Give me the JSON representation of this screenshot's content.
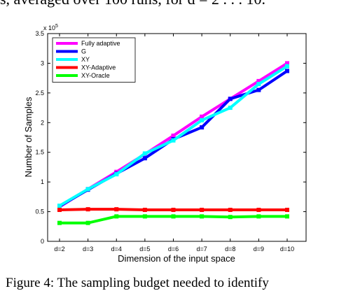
{
  "header_text": "s, averaged over 100 runs, for d = 2 . . . 10.",
  "caption": "Figure 4: The sampling budget needed to identify",
  "chart_data": {
    "type": "line",
    "xlabel": "Dimension of the input space",
    "ylabel": "Number of Samples",
    "y_multiplier": "x 10^5",
    "categories": [
      "d=2",
      "d=3",
      "d=4",
      "d=5",
      "d=6",
      "d=7",
      "d=8",
      "d=9",
      "d=10"
    ],
    "yticks": [
      "0",
      "0.5",
      "1",
      "1.5",
      "2",
      "2.5",
      "3",
      "3.5"
    ],
    "ylim": [
      0,
      3.5
    ],
    "legend_position": "top-left",
    "series": [
      {
        "name": "Fully adaptive",
        "color": "#ff00ff",
        "values": [
          0.58,
          0.88,
          1.17,
          1.47,
          1.78,
          2.1,
          2.4,
          2.7,
          3.0
        ]
      },
      {
        "name": "G",
        "color": "#0000ff",
        "values": [
          0.59,
          0.87,
          1.14,
          1.4,
          1.72,
          1.92,
          2.4,
          2.55,
          2.87
        ]
      },
      {
        "name": "XY",
        "color": "#00ffff",
        "values": [
          0.6,
          0.88,
          1.13,
          1.48,
          1.7,
          2.04,
          2.25,
          2.65,
          2.95
        ]
      },
      {
        "name": "XY-Adaptive",
        "color": "#ff0000",
        "values": [
          0.53,
          0.54,
          0.54,
          0.53,
          0.53,
          0.53,
          0.53,
          0.53,
          0.53
        ]
      },
      {
        "name": "XY-Oracle",
        "color": "#00ff00",
        "values": [
          0.31,
          0.31,
          0.42,
          0.42,
          0.42,
          0.42,
          0.41,
          0.42,
          0.42
        ]
      }
    ]
  }
}
